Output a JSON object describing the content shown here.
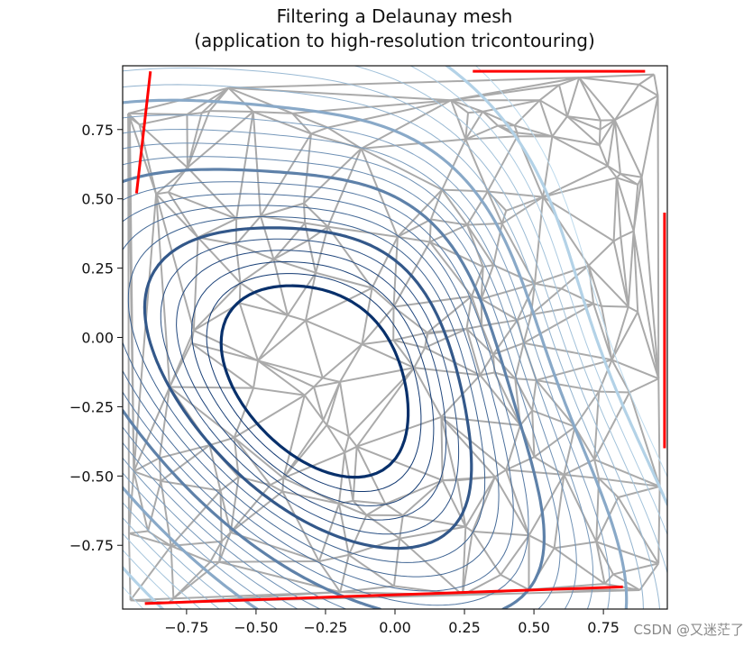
{
  "chart_data": {
    "type": "line",
    "title": "Filtering a Delaunay mesh\n(application to high-resolution tricontouring)",
    "title_lines": [
      "Filtering a Delaunay mesh",
      "(application to high-resolution tricontouring)"
    ],
    "xlabel": "",
    "ylabel": "",
    "xlim": [
      -0.98,
      0.98
    ],
    "ylim": [
      -0.98,
      0.98
    ],
    "x_ticks": [
      "−0.75",
      "−0.50",
      "−0.25",
      "0.00",
      "0.25",
      "0.50",
      "0.75"
    ],
    "y_ticks": [
      "0.75",
      "0.50",
      "0.25",
      "0.00",
      "−0.25",
      "−0.50",
      "−0.75"
    ],
    "x_tick_values": [
      -0.75,
      -0.5,
      -0.25,
      0.0,
      0.25,
      0.5,
      0.75
    ],
    "y_tick_values": [
      0.75,
      0.5,
      0.25,
      0.0,
      -0.25,
      -0.5,
      -0.75
    ],
    "grid": false,
    "legend": "none",
    "layers": [
      {
        "name": "mesh",
        "description": "gray Delaunay triangulation edges",
        "color": "#aaaaaa"
      },
      {
        "name": "masked-triangles",
        "description": "red filtered border triangles",
        "color": "#ff0000"
      },
      {
        "name": "contours",
        "description": "Blues tricontour lines, thick every 5th level",
        "colormap": "Blues"
      }
    ],
    "field_extrema": {
      "minimum_center": [
        -0.32,
        -0.15
      ],
      "ridge_center": [
        0.05,
        0.25
      ]
    },
    "contour_count": 22
  },
  "watermark": "CSDN @又迷茫了"
}
